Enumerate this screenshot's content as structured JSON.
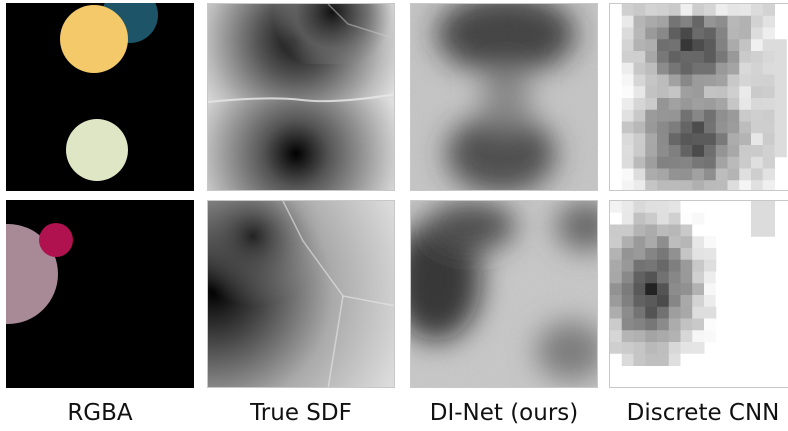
{
  "captions": [
    "RGBA",
    "True SDF",
    "DI-Net (ours)",
    "Discrete CNN"
  ],
  "colors": {
    "yellow_circle": "#f3c96a",
    "teal_circle": "#1d5468",
    "pale_green_circle": "#dfe6c6",
    "magenta_circle": "#b0124f",
    "mauve_circle": "#a88996",
    "background": "#000000"
  },
  "rows": [
    {
      "rgba": "two-circle scene with partial teal circle",
      "sdf": "row1",
      "dinet": "row1",
      "cnn": "row1"
    },
    {
      "rgba": "magenta and mauve circles",
      "sdf": "row2",
      "dinet": "row2",
      "cnn": "row2"
    }
  ]
}
